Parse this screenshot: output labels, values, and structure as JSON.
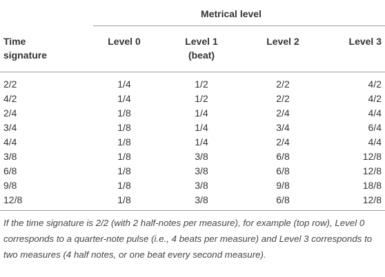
{
  "table": {
    "group_header": "Metrical level",
    "columns": [
      "Time signature",
      "Level 0",
      "Level 1 (beat)",
      "Level 2",
      "Level 3"
    ],
    "rows": [
      [
        "2/2",
        "1/4",
        "1/2",
        "2/2",
        "4/2"
      ],
      [
        "4/2",
        "1/4",
        "1/2",
        "2/2",
        "4/2"
      ],
      [
        "2/4",
        "1/8",
        "1/4",
        "2/4",
        "4/4"
      ],
      [
        "3/4",
        "1/8",
        "1/4",
        "3/4",
        "6/4"
      ],
      [
        "4/4",
        "1/8",
        "1/4",
        "2/4",
        "4/4"
      ],
      [
        "3/8",
        "1/8",
        "3/8",
        "6/8",
        "12/8"
      ],
      [
        "6/8",
        "1/8",
        "3/8",
        "6/8",
        "12/8"
      ],
      [
        "9/8",
        "1/8",
        "3/8",
        "9/8",
        "18/8"
      ],
      [
        "12/8",
        "1/8",
        "3/8",
        "6/8",
        "12/8"
      ]
    ],
    "footnote": "If the time signature is 2/2 (with 2 half-notes per measure), for example (top row), Level 0 corresponds to a quarter-note pulse (i.e., 4 beats per measure) and Level 3 corresponds to two measures (4 half notes, or one beat every second measure)."
  }
}
